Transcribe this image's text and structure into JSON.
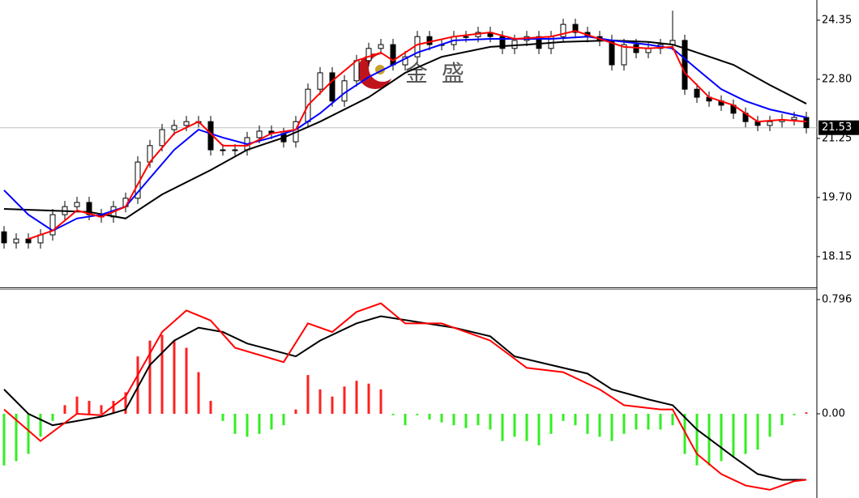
{
  "chart_data": [
    {
      "type": "candlestick",
      "watermark": "金 盛",
      "current_price": 21.53,
      "ylim": [
        17.34,
        24.88
      ],
      "yticks": [
        24.35,
        {
          "value": 22.8,
          "label": "22.80"
        },
        21.25,
        {
          "value": 19.7,
          "label": "19.70"
        },
        18.15
      ],
      "up_color": "#ffffff",
      "down_color": "#000000",
      "open": [
        18.8,
        18.51,
        18.61,
        18.51,
        18.72,
        19.25,
        19.46,
        19.57,
        19.25,
        19.19,
        19.46,
        19.68,
        20.63,
        21.06,
        21.48,
        21.59,
        21.69,
        21.69,
        20.95,
        20.95,
        20.95,
        21.27,
        21.44,
        21.38,
        21.16,
        21.69,
        22.54,
        22.97,
        22.23,
        22.76,
        23.29,
        23.61,
        23.71,
        23.18,
        23.39,
        23.92,
        23.71,
        23.71,
        23.92,
        23.92,
        24.03,
        23.92,
        23.61,
        23.82,
        23.92,
        23.61,
        23.92,
        24.24,
        24.03,
        23.92,
        23.82,
        23.18,
        23.71,
        23.5,
        23.61,
        23.71,
        23.82,
        22.54,
        22.33,
        22.23,
        22.12,
        21.91,
        21.69,
        21.59,
        21.69,
        21.74,
        21.8
      ],
      "high": [
        18.95,
        18.76,
        18.76,
        18.87,
        19.4,
        19.61,
        19.72,
        19.72,
        19.4,
        19.61,
        19.83,
        20.78,
        21.21,
        21.63,
        21.74,
        21.84,
        21.84,
        21.84,
        21.1,
        21.1,
        21.42,
        21.59,
        21.59,
        21.53,
        21.84,
        22.69,
        23.12,
        23.12,
        22.91,
        23.44,
        23.76,
        23.86,
        23.86,
        23.54,
        24.07,
        24.07,
        23.86,
        24.07,
        24.07,
        24.18,
        24.18,
        24.07,
        23.97,
        24.07,
        24.07,
        24.07,
        24.39,
        24.39,
        24.18,
        24.07,
        23.97,
        23.86,
        23.86,
        23.76,
        23.86,
        24.6,
        23.97,
        22.69,
        22.48,
        22.38,
        22.27,
        22.06,
        21.84,
        21.84,
        21.89,
        21.95,
        21.95
      ],
      "low": [
        18.36,
        18.36,
        18.36,
        18.36,
        18.57,
        19.1,
        19.31,
        19.1,
        19.04,
        19.04,
        19.31,
        19.53,
        20.48,
        20.91,
        21.33,
        21.44,
        21.54,
        20.8,
        20.8,
        20.8,
        20.8,
        21.12,
        21.23,
        21.01,
        21.01,
        21.54,
        22.39,
        22.08,
        22.08,
        22.61,
        23.14,
        23.46,
        23.03,
        23.03,
        23.24,
        23.56,
        23.56,
        23.56,
        23.77,
        23.77,
        23.77,
        23.46,
        23.46,
        23.67,
        23.46,
        23.46,
        23.77,
        23.88,
        23.77,
        23.67,
        23.03,
        23.03,
        23.35,
        23.35,
        23.46,
        23.56,
        22.39,
        22.18,
        22.08,
        21.97,
        21.76,
        21.54,
        21.44,
        21.44,
        21.54,
        21.59,
        21.38
      ],
      "close": [
        18.51,
        18.61,
        18.51,
        18.72,
        19.25,
        19.46,
        19.57,
        19.25,
        19.19,
        19.46,
        19.68,
        20.63,
        21.06,
        21.48,
        21.59,
        21.69,
        21.69,
        20.95,
        20.95,
        20.95,
        21.27,
        21.44,
        21.38,
        21.16,
        21.69,
        22.54,
        22.97,
        22.23,
        22.76,
        23.29,
        23.61,
        23.71,
        23.18,
        23.39,
        23.92,
        23.71,
        23.71,
        23.92,
        23.92,
        24.03,
        23.92,
        23.61,
        23.82,
        23.92,
        23.61,
        23.92,
        24.24,
        24.03,
        23.92,
        23.82,
        23.18,
        23.71,
        23.5,
        23.61,
        23.71,
        23.82,
        22.54,
        22.33,
        22.23,
        22.12,
        21.91,
        21.69,
        21.59,
        21.69,
        21.74,
        21.8,
        21.53
      ],
      "series": [
        {
          "color": "#000000",
          "x": [
            0,
            7,
            10,
            13,
            17,
            20,
            23,
            26,
            30,
            33,
            36,
            40,
            43,
            46,
            50,
            53,
            55,
            56,
            60,
            63,
            66
          ],
          "values": [
            19.4,
            19.32,
            19.15,
            19.78,
            20.42,
            20.95,
            21.27,
            21.69,
            22.33,
            22.97,
            23.39,
            23.65,
            23.71,
            23.78,
            23.82,
            23.78,
            23.71,
            23.61,
            23.18,
            22.65,
            22.16
          ]
        },
        {
          "color": "#0000ff",
          "x": [
            0,
            2,
            4,
            6,
            8,
            10,
            12,
            14,
            16,
            18,
            20,
            22,
            24,
            26,
            28,
            30,
            32,
            34,
            37,
            40,
            42,
            45,
            48,
            50,
            53,
            55,
            57,
            59,
            61,
            63,
            66
          ],
          "values": [
            19.89,
            19.25,
            18.83,
            19.15,
            19.25,
            19.46,
            20.21,
            20.95,
            21.48,
            21.27,
            21.1,
            21.27,
            21.48,
            21.91,
            22.44,
            22.86,
            23.18,
            23.5,
            23.82,
            23.86,
            23.86,
            23.86,
            23.92,
            23.82,
            23.71,
            23.61,
            23.07,
            22.54,
            22.23,
            22.01,
            21.8
          ]
        },
        {
          "color": "#ff0000",
          "x": [
            2,
            4,
            6,
            8,
            10,
            12,
            14,
            16,
            18,
            20,
            22,
            24,
            25,
            27,
            29,
            31,
            32,
            34,
            37,
            40,
            42,
            45,
            47,
            49,
            51,
            53,
            55,
            56,
            58,
            60,
            62,
            64,
            66
          ],
          "values": [
            18.61,
            18.83,
            19.36,
            19.19,
            19.46,
            20.63,
            21.38,
            21.69,
            21.06,
            21.06,
            21.38,
            21.48,
            22.12,
            22.76,
            23.29,
            23.5,
            23.29,
            23.71,
            23.92,
            24.03,
            23.86,
            23.92,
            24.07,
            23.86,
            23.65,
            23.61,
            23.65,
            22.97,
            22.33,
            22.12,
            21.69,
            21.74,
            21.69
          ]
        }
      ]
    },
    {
      "type": "macd",
      "ylim": [
        -0.587,
        0.869
      ],
      "yticks": [
        0.796,
        {
          "value": 0,
          "label": "0.00"
        }
      ],
      "up_color": "#ff2020",
      "down_color": "#33ee22",
      "histogram": [
        -0.36,
        -0.33,
        -0.28,
        -0.16,
        -0.05,
        0.06,
        0.12,
        0.09,
        0.06,
        0.09,
        0.15,
        0.4,
        0.51,
        0.55,
        0.51,
        0.46,
        0.29,
        0.09,
        -0.05,
        -0.14,
        -0.16,
        -0.14,
        -0.11,
        -0.08,
        0.03,
        0.27,
        0.17,
        0.12,
        0.19,
        0.23,
        0.21,
        0.17,
        -0.01,
        -0.08,
        -0.01,
        -0.04,
        -0.06,
        -0.08,
        -0.1,
        -0.08,
        -0.11,
        -0.19,
        -0.16,
        -0.19,
        -0.22,
        -0.14,
        -0.05,
        -0.08,
        -0.14,
        -0.16,
        -0.19,
        -0.14,
        -0.11,
        -0.11,
        -0.11,
        -0.08,
        -0.28,
        -0.36,
        -0.36,
        -0.33,
        -0.3,
        -0.28,
        -0.25,
        -0.16,
        -0.08,
        -0.01,
        0.01
      ],
      "series": [
        {
          "color": "#000000",
          "x": [
            0,
            2,
            4,
            6,
            8,
            10,
            12,
            14,
            16,
            18,
            20,
            24,
            26,
            29,
            31,
            34,
            37,
            40,
            42,
            45,
            48,
            50,
            53,
            55,
            57,
            60,
            62,
            64,
            66
          ],
          "values": [
            0.17,
            0.0,
            -0.08,
            -0.05,
            -0.02,
            0.03,
            0.34,
            0.51,
            0.6,
            0.57,
            0.49,
            0.4,
            0.51,
            0.63,
            0.68,
            0.64,
            0.6,
            0.54,
            0.4,
            0.34,
            0.28,
            0.17,
            0.1,
            0.06,
            -0.11,
            -0.3,
            -0.42,
            -0.46,
            -0.46
          ]
        },
        {
          "color": "#ff0000",
          "x": [
            0,
            3,
            6,
            8,
            10,
            13,
            15,
            17,
            19,
            23,
            25,
            27,
            29,
            31,
            33,
            36,
            38,
            40,
            43,
            46,
            49,
            51,
            54,
            55,
            57,
            59,
            61,
            63,
            65,
            66
          ],
          "values": [
            0.03,
            -0.19,
            0.0,
            -0.01,
            0.12,
            0.57,
            0.72,
            0.65,
            0.46,
            0.36,
            0.63,
            0.57,
            0.71,
            0.77,
            0.63,
            0.63,
            0.57,
            0.51,
            0.32,
            0.29,
            0.17,
            0.06,
            0.03,
            0.03,
            -0.28,
            -0.42,
            -0.5,
            -0.53,
            -0.47,
            -0.46
          ]
        }
      ]
    }
  ]
}
